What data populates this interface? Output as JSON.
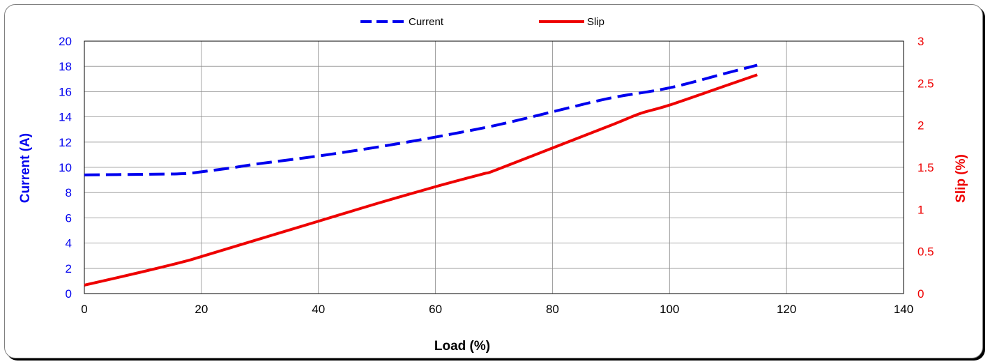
{
  "chart_data": {
    "type": "line",
    "title": "",
    "xlabel": "Load (%)",
    "ylabel_left": "Current (A)",
    "ylabel_right": "Slip (%)",
    "xlim": [
      0,
      140
    ],
    "ylim_left": [
      0,
      20
    ],
    "ylim_right": [
      0,
      3
    ],
    "x_ticks": [
      0,
      20,
      40,
      60,
      80,
      100,
      120,
      140
    ],
    "y_left_ticks": [
      0,
      2,
      4,
      6,
      8,
      10,
      12,
      14,
      16,
      18,
      20
    ],
    "y_right_ticks": [
      "0",
      "0.5",
      "1",
      "1.5",
      "2",
      "2.5",
      "3"
    ],
    "grid": true,
    "legend_position": "top-center",
    "series": [
      {
        "name": "Current",
        "axis": "left",
        "style": "dashed",
        "color": "#0000ee",
        "x": [
          0,
          10,
          17,
          20,
          25,
          30,
          40,
          50,
          60,
          70,
          80,
          90,
          100,
          110,
          115
        ],
        "y": [
          9.4,
          9.45,
          9.5,
          9.65,
          9.95,
          10.3,
          10.9,
          11.6,
          12.4,
          13.3,
          14.4,
          15.5,
          16.3,
          17.5,
          18.1
        ]
      },
      {
        "name": "Slip",
        "axis": "right",
        "style": "solid",
        "color": "#ee0000",
        "x": [
          0,
          10,
          17,
          20,
          30,
          40,
          50,
          60,
          68,
          70,
          80,
          90,
          95,
          100,
          110,
          115
        ],
        "y": [
          0.1,
          0.26,
          0.38,
          0.44,
          0.65,
          0.86,
          1.07,
          1.27,
          1.42,
          1.46,
          1.73,
          2.0,
          2.14,
          2.24,
          2.48,
          2.6
        ]
      }
    ]
  }
}
